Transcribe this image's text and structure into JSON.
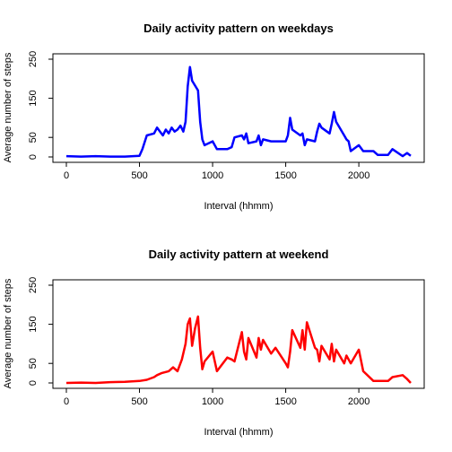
{
  "chart_data": [
    {
      "type": "line",
      "title": "Daily activity pattern on weekdays",
      "xlabel": "Interval (hhmm)",
      "ylabel": "Average number of steps",
      "xlim": [
        0,
        2355
      ],
      "ylim": [
        0,
        250
      ],
      "xticks": [
        0,
        500,
        1000,
        1500,
        2000
      ],
      "yticks": [
        0,
        50,
        150,
        250
      ],
      "grid": false,
      "color": "#0000ff",
      "x": [
        0,
        100,
        200,
        300,
        400,
        500,
        520,
        550,
        600,
        620,
        640,
        660,
        680,
        700,
        720,
        740,
        760,
        780,
        800,
        815,
        830,
        845,
        860,
        900,
        915,
        930,
        945,
        1000,
        1030,
        1100,
        1130,
        1150,
        1200,
        1215,
        1230,
        1245,
        1300,
        1315,
        1330,
        1345,
        1400,
        1430,
        1500,
        1515,
        1530,
        1545,
        1600,
        1615,
        1630,
        1645,
        1700,
        1715,
        1730,
        1745,
        1800,
        1815,
        1830,
        1845,
        1900,
        1915,
        1930,
        1945,
        2000,
        2030,
        2100,
        2130,
        2200,
        2230,
        2300,
        2330,
        2355
      ],
      "y": [
        2,
        1,
        2,
        1,
        1,
        3,
        20,
        55,
        60,
        75,
        65,
        55,
        70,
        60,
        75,
        65,
        70,
        80,
        65,
        90,
        180,
        230,
        195,
        170,
        90,
        45,
        30,
        40,
        20,
        20,
        25,
        50,
        55,
        45,
        60,
        35,
        40,
        55,
        30,
        45,
        40,
        40,
        40,
        55,
        100,
        70,
        55,
        60,
        30,
        45,
        40,
        65,
        85,
        75,
        60,
        85,
        115,
        90,
        55,
        45,
        40,
        15,
        30,
        15,
        15,
        5,
        5,
        20,
        2,
        10,
        3
      ]
    },
    {
      "type": "line",
      "title": "Daily activity pattern at weekend",
      "xlabel": "Interval (hhmm)",
      "ylabel": "Average number of steps",
      "xlim": [
        0,
        2355
      ],
      "ylim": [
        0,
        250
      ],
      "xticks": [
        0,
        500,
        1000,
        1500,
        2000
      ],
      "yticks": [
        0,
        50,
        150,
        250
      ],
      "grid": false,
      "color": "#ff0000",
      "x": [
        0,
        100,
        200,
        300,
        400,
        500,
        550,
        600,
        620,
        650,
        700,
        730,
        760,
        790,
        815,
        830,
        845,
        860,
        880,
        900,
        915,
        930,
        945,
        1000,
        1030,
        1100,
        1130,
        1150,
        1200,
        1215,
        1230,
        1245,
        1300,
        1315,
        1330,
        1345,
        1400,
        1430,
        1500,
        1515,
        1530,
        1545,
        1600,
        1615,
        1630,
        1645,
        1700,
        1715,
        1730,
        1745,
        1800,
        1815,
        1830,
        1845,
        1900,
        1915,
        1930,
        1945,
        2000,
        2030,
        2100,
        2130,
        2200,
        2230,
        2300,
        2330,
        2355
      ],
      "y": [
        0,
        1,
        0,
        2,
        3,
        5,
        8,
        15,
        20,
        25,
        30,
        40,
        30,
        60,
        100,
        150,
        165,
        95,
        140,
        170,
        90,
        35,
        55,
        80,
        30,
        65,
        60,
        55,
        130,
        80,
        60,
        115,
        65,
        115,
        85,
        110,
        75,
        90,
        50,
        40,
        80,
        135,
        90,
        135,
        85,
        155,
        90,
        85,
        55,
        95,
        60,
        100,
        55,
        85,
        50,
        70,
        60,
        50,
        85,
        30,
        5,
        5,
        5,
        15,
        20,
        10,
        0
      ]
    }
  ]
}
